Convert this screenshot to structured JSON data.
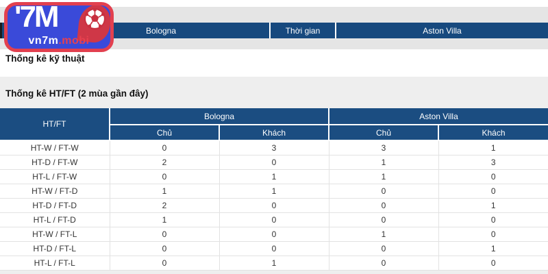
{
  "logo": {
    "mark": "'7M",
    "domain_white": "vn7m",
    "domain_red": ".mobi"
  },
  "match_header": {
    "home": "Bologna",
    "time_label": "Thời gian",
    "away": "Aston Villa"
  },
  "section_title": "Thống kê kỹ thuật",
  "table": {
    "title": "Thống kê HT/FT (2 mùa gần đây)",
    "corner_header": "HT/FT",
    "groups": [
      {
        "label": "Bologna"
      },
      {
        "label": "Aston Villa"
      }
    ],
    "sub_headers": [
      "Chủ",
      "Khách",
      "Chủ",
      "Khách"
    ],
    "rows": [
      {
        "label": "HT-W / FT-W",
        "values": [
          0,
          3,
          3,
          1
        ]
      },
      {
        "label": "HT-D / FT-W",
        "values": [
          2,
          0,
          1,
          3
        ]
      },
      {
        "label": "HT-L / FT-W",
        "values": [
          0,
          1,
          1,
          0
        ]
      },
      {
        "label": "HT-W / FT-D",
        "values": [
          1,
          1,
          0,
          0
        ]
      },
      {
        "label": "HT-D / FT-D",
        "values": [
          2,
          0,
          0,
          1
        ]
      },
      {
        "label": "HT-L / FT-D",
        "values": [
          1,
          0,
          0,
          0
        ]
      },
      {
        "label": "HT-W / FT-L",
        "values": [
          0,
          0,
          1,
          0
        ]
      },
      {
        "label": "HT-D / FT-L",
        "values": [
          0,
          0,
          0,
          1
        ]
      },
      {
        "label": "HT-L / FT-L",
        "values": [
          0,
          1,
          0,
          0
        ]
      }
    ]
  },
  "colors": {
    "nav_blue": "#17497e",
    "table_header_blue": "#1b4d81",
    "band_gray": "#e5e5e5",
    "content_gray": "#eeeeee",
    "logo_blue": "#3a4ad9",
    "logo_red": "#e2404f",
    "ball_red": "#c8303f"
  }
}
